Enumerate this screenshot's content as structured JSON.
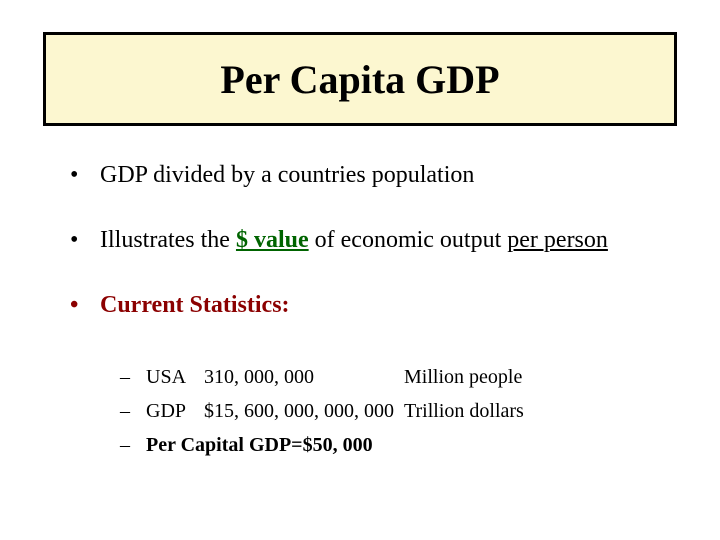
{
  "title": "Per Capita GDP",
  "bullets": {
    "b1": "GDP divided by a countries population",
    "b2_pre": "Illustrates the ",
    "b2_dvalue": "$ value",
    "b2_mid": " of economic output ",
    "b2_under": "per person",
    "b3": "Current Statistics:"
  },
  "stats": {
    "usa_label": "USA",
    "usa_value": "310, 000, 000",
    "usa_unit": "Million people",
    "gdp_label": "GDP",
    "gdp_value": "$15, 600, 000, 000, 000",
    "gdp_unit": "Trillion dollars",
    "pcg_label": "Per Capital GDP",
    "pcg_eq": "  =  ",
    "pcg_value": "$50, 000"
  },
  "style": {
    "title_bg": "#fcf7d0",
    "title_border": "#000000",
    "dvalue_color": "#006400",
    "dark_red": "#8b0000",
    "background": "#ffffff",
    "font": "Times New Roman"
  }
}
